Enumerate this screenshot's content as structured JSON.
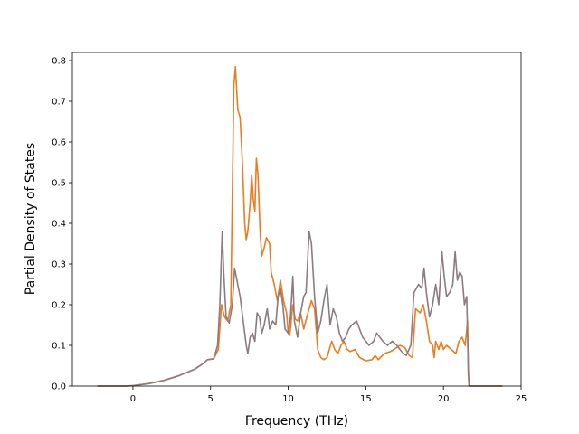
{
  "chart_data": {
    "type": "line",
    "title": "",
    "xlabel": "Frequency (THz)",
    "ylabel": "Partial Density of States",
    "xlim": [
      -3.9,
      25
    ],
    "ylim": [
      0,
      0.82
    ],
    "xticks": [
      0,
      5,
      10,
      15,
      20,
      25
    ],
    "yticks": [
      0.0,
      0.1,
      0.2,
      0.3,
      0.4,
      0.5,
      0.6,
      0.7,
      0.8
    ],
    "grid": false,
    "legend": "none",
    "series": [
      {
        "color": "#e67e22",
        "points": [
          [
            -2.3,
            0
          ],
          [
            -0.5,
            0
          ],
          [
            0,
            0.001
          ],
          [
            1,
            0.006
          ],
          [
            2,
            0.014
          ],
          [
            3,
            0.026
          ],
          [
            4,
            0.042
          ],
          [
            4.5,
            0.055
          ],
          [
            4.8,
            0.065
          ],
          [
            5.2,
            0.067
          ],
          [
            5.5,
            0.09
          ],
          [
            5.7,
            0.2
          ],
          [
            5.9,
            0.17
          ],
          [
            6.1,
            0.16
          ],
          [
            6.3,
            0.2
          ],
          [
            6.5,
            0.74
          ],
          [
            6.6,
            0.785
          ],
          [
            6.75,
            0.68
          ],
          [
            6.9,
            0.66
          ],
          [
            7.05,
            0.55
          ],
          [
            7.2,
            0.4
          ],
          [
            7.3,
            0.36
          ],
          [
            7.4,
            0.38
          ],
          [
            7.55,
            0.45
          ],
          [
            7.65,
            0.52
          ],
          [
            7.75,
            0.46
          ],
          [
            7.85,
            0.43
          ],
          [
            7.95,
            0.56
          ],
          [
            8.05,
            0.52
          ],
          [
            8.2,
            0.37
          ],
          [
            8.3,
            0.32
          ],
          [
            8.45,
            0.34
          ],
          [
            8.6,
            0.365
          ],
          [
            8.8,
            0.35
          ],
          [
            8.9,
            0.28
          ],
          [
            9.1,
            0.25
          ],
          [
            9.3,
            0.21
          ],
          [
            9.5,
            0.26
          ],
          [
            9.7,
            0.21
          ],
          [
            9.9,
            0.18
          ],
          [
            10.0,
            0.13
          ],
          [
            10.1,
            0.125
          ],
          [
            10.3,
            0.2
          ],
          [
            10.45,
            0.165
          ],
          [
            10.6,
            0.16
          ],
          [
            10.8,
            0.18
          ],
          [
            11.0,
            0.14
          ],
          [
            11.2,
            0.17
          ],
          [
            11.5,
            0.21
          ],
          [
            11.7,
            0.19
          ],
          [
            11.9,
            0.09
          ],
          [
            12.1,
            0.07
          ],
          [
            12.3,
            0.065
          ],
          [
            12.5,
            0.07
          ],
          [
            12.8,
            0.11
          ],
          [
            13.0,
            0.09
          ],
          [
            13.2,
            0.08
          ],
          [
            13.4,
            0.1
          ],
          [
            13.6,
            0.11
          ],
          [
            13.8,
            0.09
          ],
          [
            14.0,
            0.085
          ],
          [
            14.3,
            0.09
          ],
          [
            14.6,
            0.07
          ],
          [
            15.0,
            0.062
          ],
          [
            15.4,
            0.065
          ],
          [
            15.6,
            0.075
          ],
          [
            15.8,
            0.065
          ],
          [
            16.2,
            0.08
          ],
          [
            16.6,
            0.085
          ],
          [
            17.0,
            0.095
          ],
          [
            17.2,
            0.1
          ],
          [
            17.5,
            0.095
          ],
          [
            17.8,
            0.075
          ],
          [
            18.0,
            0.07
          ],
          [
            18.2,
            0.19
          ],
          [
            18.5,
            0.18
          ],
          [
            18.7,
            0.2
          ],
          [
            18.9,
            0.16
          ],
          [
            19.1,
            0.11
          ],
          [
            19.3,
            0.1
          ],
          [
            19.4,
            0.07
          ],
          [
            19.5,
            0.11
          ],
          [
            19.7,
            0.09
          ],
          [
            19.85,
            0.11
          ],
          [
            20.0,
            0.09
          ],
          [
            20.2,
            0.1
          ],
          [
            20.5,
            0.09
          ],
          [
            20.8,
            0.08
          ],
          [
            21.0,
            0.11
          ],
          [
            21.2,
            0.12
          ],
          [
            21.4,
            0.1
          ],
          [
            21.55,
            0.16
          ],
          [
            21.6,
            0.03
          ],
          [
            21.65,
            0
          ],
          [
            22.0,
            0
          ],
          [
            23.8,
            0
          ]
        ]
      },
      {
        "color": "#8c7b81",
        "points": [
          [
            -2.3,
            0
          ],
          [
            -0.5,
            0
          ],
          [
            0,
            0.001
          ],
          [
            1,
            0.006
          ],
          [
            2,
            0.014
          ],
          [
            3,
            0.026
          ],
          [
            4,
            0.042
          ],
          [
            4.5,
            0.055
          ],
          [
            4.8,
            0.065
          ],
          [
            5.2,
            0.067
          ],
          [
            5.45,
            0.1
          ],
          [
            5.6,
            0.2
          ],
          [
            5.75,
            0.38
          ],
          [
            5.85,
            0.28
          ],
          [
            6.0,
            0.17
          ],
          [
            6.2,
            0.155
          ],
          [
            6.4,
            0.2
          ],
          [
            6.55,
            0.29
          ],
          [
            6.7,
            0.26
          ],
          [
            6.9,
            0.22
          ],
          [
            7.1,
            0.16
          ],
          [
            7.3,
            0.1
          ],
          [
            7.4,
            0.08
          ],
          [
            7.55,
            0.12
          ],
          [
            7.7,
            0.13
          ],
          [
            7.85,
            0.11
          ],
          [
            8.0,
            0.18
          ],
          [
            8.15,
            0.17
          ],
          [
            8.3,
            0.13
          ],
          [
            8.45,
            0.15
          ],
          [
            8.65,
            0.19
          ],
          [
            8.8,
            0.14
          ],
          [
            9.0,
            0.16
          ],
          [
            9.2,
            0.15
          ],
          [
            9.35,
            0.22
          ],
          [
            9.5,
            0.24
          ],
          [
            9.65,
            0.2
          ],
          [
            9.8,
            0.14
          ],
          [
            10.0,
            0.13
          ],
          [
            10.15,
            0.17
          ],
          [
            10.3,
            0.27
          ],
          [
            10.4,
            0.16
          ],
          [
            10.6,
            0.12
          ],
          [
            10.8,
            0.18
          ],
          [
            11.0,
            0.22
          ],
          [
            11.15,
            0.23
          ],
          [
            11.35,
            0.38
          ],
          [
            11.5,
            0.35
          ],
          [
            11.7,
            0.22
          ],
          [
            11.9,
            0.13
          ],
          [
            12.1,
            0.16
          ],
          [
            12.3,
            0.21
          ],
          [
            12.5,
            0.25
          ],
          [
            12.7,
            0.15
          ],
          [
            12.9,
            0.19
          ],
          [
            13.1,
            0.17
          ],
          [
            13.3,
            0.13
          ],
          [
            13.5,
            0.11
          ],
          [
            13.7,
            0.12
          ],
          [
            13.9,
            0.14
          ],
          [
            14.1,
            0.15
          ],
          [
            14.4,
            0.16
          ],
          [
            14.6,
            0.14
          ],
          [
            14.8,
            0.12
          ],
          [
            15.0,
            0.11
          ],
          [
            15.2,
            0.1
          ],
          [
            15.5,
            0.11
          ],
          [
            15.7,
            0.13
          ],
          [
            15.9,
            0.12
          ],
          [
            16.1,
            0.11
          ],
          [
            16.4,
            0.1
          ],
          [
            16.7,
            0.11
          ],
          [
            17.0,
            0.1
          ],
          [
            17.3,
            0.085
          ],
          [
            17.6,
            0.075
          ],
          [
            17.9,
            0.1
          ],
          [
            18.1,
            0.23
          ],
          [
            18.4,
            0.25
          ],
          [
            18.6,
            0.24
          ],
          [
            18.75,
            0.29
          ],
          [
            18.9,
            0.23
          ],
          [
            19.1,
            0.17
          ],
          [
            19.3,
            0.2
          ],
          [
            19.5,
            0.25
          ],
          [
            19.7,
            0.2
          ],
          [
            19.9,
            0.33
          ],
          [
            20.05,
            0.27
          ],
          [
            20.2,
            0.22
          ],
          [
            20.4,
            0.23
          ],
          [
            20.6,
            0.25
          ],
          [
            20.75,
            0.33
          ],
          [
            20.9,
            0.26
          ],
          [
            21.05,
            0.28
          ],
          [
            21.2,
            0.27
          ],
          [
            21.35,
            0.2
          ],
          [
            21.5,
            0.22
          ],
          [
            21.6,
            0.05
          ],
          [
            21.65,
            0
          ],
          [
            22.0,
            0
          ],
          [
            23.8,
            0
          ]
        ]
      }
    ]
  }
}
